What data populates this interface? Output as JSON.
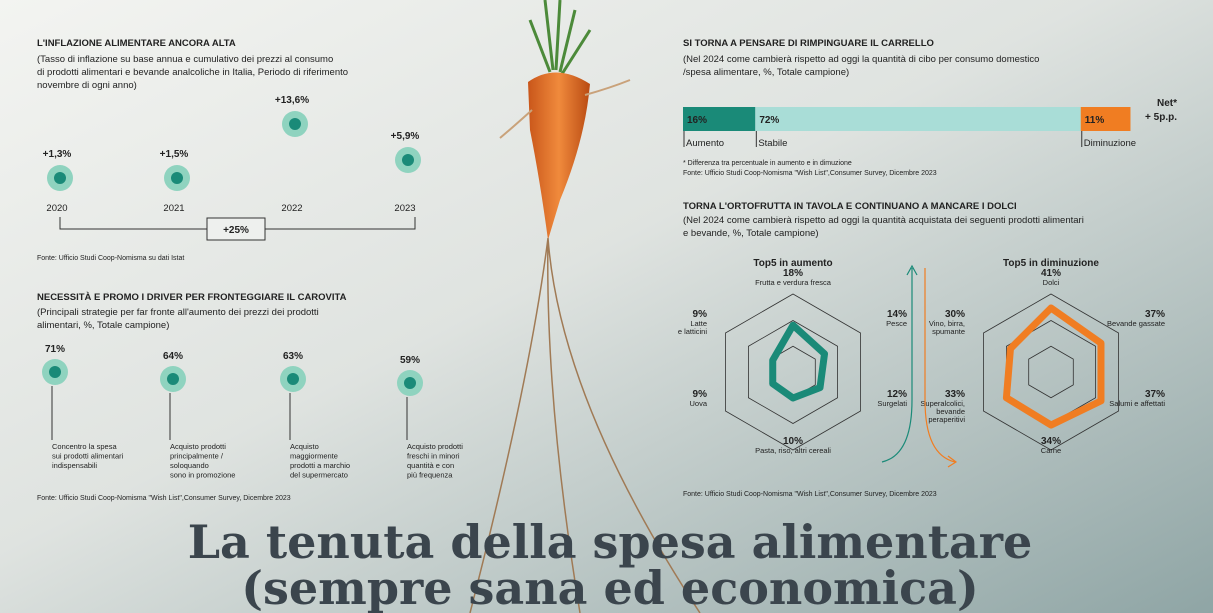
{
  "inflation": {
    "title": "L'INFLAZIONE ALIMENTARE ANCORA ALTA",
    "subtitle": [
      "(Tasso di inflazione su base annua e cumulativo dei prezzi al consumo",
      "di prodotti alimentari e bevande analcoliche in Italia, Periodo di riferimento",
      "novembre di ogni anno)"
    ],
    "items": [
      {
        "label": "+1,3%",
        "year": "2020"
      },
      {
        "label": "+1,5%",
        "year": "2021"
      },
      {
        "label": "+13,6%",
        "year": "2022"
      },
      {
        "label": "+5,9%",
        "year": "2023"
      }
    ],
    "total": "+25%",
    "source": "Fonte: Ufficio Studi Coop-Nomisma su dati Istat"
  },
  "drivers": {
    "title": "NECESSITÀ E PROMO I DRIVER PER FRONTEGGIARE IL CAROVITA",
    "subtitle": [
      "(Principali strategie per far fronte all'aumento dei prezzi dei prodotti",
      "alimentari, %, Totale campione)"
    ],
    "items": [
      {
        "label": "71%",
        "text": [
          "Concentro la spesa",
          "sui prodotti alimentari",
          "indispensabili"
        ]
      },
      {
        "label": "64%",
        "text": [
          "Acquisto prodotti",
          "principalmente /",
          "soloquando",
          "sono in promozione"
        ]
      },
      {
        "label": "63%",
        "text": [
          "Acquisto",
          "maggiormente",
          "prodotti a marchio",
          "del supermercato"
        ]
      },
      {
        "label": "59%",
        "text": [
          "Acquisto prodotti",
          "freschi in minori",
          "quantità e con",
          "più frequenza"
        ]
      }
    ],
    "source": "Fonte: Ufficio Studi Coop-Nomisma \"Wish List\",Consumer Survey, Dicembre 2023"
  },
  "cart": {
    "title": "SI TORNA A PENSARE DI RIMPINGUARE IL CARRELLO",
    "subtitle": [
      "(Nel 2024 come cambierà rispetto ad oggi la quantità di cibo per consumo domestico",
      "/spesa alimentare, %, Totale campione)"
    ],
    "xlim": [
      0,
      100
    ],
    "segments": [
      {
        "name": "Aumento",
        "value": 16,
        "label": "16%",
        "color": "#1a8a78"
      },
      {
        "name": "Stabile",
        "value": 72,
        "label": "72%",
        "color": "#a9ddd7"
      },
      {
        "name": "Diminuzione",
        "value": 11,
        "label": "11%",
        "color": "#f07d22"
      }
    ],
    "net_title": "Net*",
    "net_value": "+ 5p.p.",
    "footnote": "* Differenza tra percentuale in aumento e in dimuzione",
    "source": "Fonte: Ufficio Studi Coop-Nomisma \"Wish List\",Consumer Survey, Dicembre 2023"
  },
  "fruit": {
    "title": "TORNA L'ORTOFRUTTA IN TAVOLA E CONTINUANO A MANCARE I DOLCI",
    "subtitle": [
      "(Nel 2024 come cambierà rispetto ad oggi la quantità acquistata dei seguenti prodotti alimentari",
      "e bevande, %, Totale campione)"
    ],
    "radars": [
      {
        "title": "Top5 in aumento",
        "color": "#1a8a78",
        "rlim": [
          0,
          30
        ],
        "axes": [
          {
            "name": [
              "Frutta e verdura fresca"
            ],
            "value": 18,
            "label": "18%"
          },
          {
            "name": [
              "Pesce"
            ],
            "value": 14,
            "label": "14%"
          },
          {
            "name": [
              "Surgelati"
            ],
            "value": 12,
            "label": "12%"
          },
          {
            "name": [
              "Pasta, riso, altri cereali"
            ],
            "value": 10,
            "label": "10%"
          },
          {
            "name": [
              "Uova"
            ],
            "value": 9,
            "label": "9%"
          },
          {
            "name": [
              "Latte",
              "e latticini"
            ],
            "value": 9,
            "label": "9%"
          }
        ]
      },
      {
        "title": "Top5 in diminuzione",
        "color": "#f07d22",
        "rlim": [
          0,
          50
        ],
        "axes": [
          {
            "name": [
              "Dolci"
            ],
            "value": 41,
            "label": "41%"
          },
          {
            "name": [
              "Bevande gassate"
            ],
            "value": 37,
            "label": "37%"
          },
          {
            "name": [
              "Salumi e affettati"
            ],
            "value": 37,
            "label": "37%"
          },
          {
            "name": [
              "Carne"
            ],
            "value": 34,
            "label": "34%"
          },
          {
            "name": [
              "Superalcolici,",
              "bevande",
              "peraperitivi"
            ],
            "value": 33,
            "label": "33%"
          },
          {
            "name": [
              "Vino, birra,",
              "spumante"
            ],
            "value": 30,
            "label": "30%"
          }
        ]
      }
    ],
    "source": "Fonte: Ufficio Studi Coop-Nomisma \"Wish List\",Consumer Survey, Dicembre 2023"
  },
  "headline": [
    "La tenuta della spesa alimentare",
    "(sempre sana ed economica)"
  ]
}
